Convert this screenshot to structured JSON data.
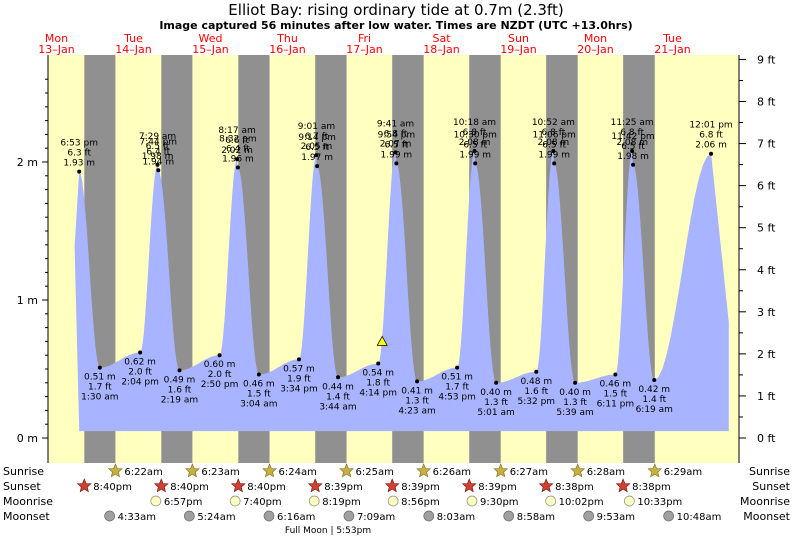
{
  "header": {
    "title": "Elliot Bay: rising  ordinary tide at 0.7m (2.3ft)",
    "subtitle": "Image captured 56 minutes after low water. Times are NZDT (UTC +13.0hrs)"
  },
  "days": [
    {
      "dow": "Mon",
      "date": "13–Jan"
    },
    {
      "dow": "Tue",
      "date": "14–Jan"
    },
    {
      "dow": "Wed",
      "date": "15–Jan"
    },
    {
      "dow": "Thu",
      "date": "16–Jan"
    },
    {
      "dow": "Fri",
      "date": "17–Jan"
    },
    {
      "dow": "Sat",
      "date": "18–Jan"
    },
    {
      "dow": "Sun",
      "date": "19–Jan"
    },
    {
      "dow": "Mon",
      "date": "20–Jan"
    },
    {
      "dow": "Tue",
      "date": "21–Jan"
    }
  ],
  "row_labels": {
    "sunrise": "Sunrise",
    "sunset": "Sunset",
    "moonrise": "Moonrise",
    "moonset": "Moonset"
  },
  "moon_phase": "Full Moon | 5:53pm",
  "colors": {
    "day": "#ffffc0",
    "night": "#909090",
    "tide": "#a8b4ff",
    "title": "#000000",
    "dow": "#ff0000",
    "sunrise_star": "#c8b040",
    "sunset_star": "#d04030",
    "moonrise": "#ffffc0",
    "moonset": "#a0a0a0",
    "marker": "#ffff00"
  },
  "chart_data": {
    "type": "area",
    "title": "Elliot Bay: rising  ordinary tide at 0.7m (2.3ft)",
    "ylabel_left": "m",
    "ylabel_right": "ft",
    "left_ticks": [
      "0 m",
      "1 m",
      "2 m"
    ],
    "right_ticks": [
      "0 ft",
      "1 ft",
      "2 ft",
      "3 ft",
      "4 ft",
      "5 ft",
      "6 ft",
      "7 ft",
      "8 ft",
      "9 ft"
    ],
    "ylim": [
      0,
      2.75
    ],
    "current": {
      "time": "17 Jan 5:10pm",
      "height_m": 0.7
    },
    "high_tides": [
      {
        "t": 0.795,
        "time": "6:53 pm",
        "ft": "6.3 ft",
        "m": "1.93 m",
        "h": 1.93
      },
      {
        "t": 1.812,
        "time": "7:29 am",
        "ft": "6.5 ft",
        "m": "1.98 m",
        "h": 1.98
      },
      {
        "t": 1.822,
        "time": "7:44 pm",
        "ft": "6.4 ft",
        "m": "1.94 m",
        "h": 1.94
      },
      {
        "t": 2.845,
        "time": "8:17 am",
        "ft": "6.6 ft",
        "m": "2.02 m",
        "h": 2.02
      },
      {
        "t": 2.856,
        "time": "8:32 pm",
        "ft": "6.4 ft",
        "m": "1.96 m",
        "h": 1.96
      },
      {
        "t": 3.876,
        "time": "9:01 am",
        "ft": "6.7 ft",
        "m": "2.05 m",
        "h": 2.05
      },
      {
        "t": 3.885,
        "time": "9:14 pm",
        "ft": "6.5 ft",
        "m": "1.97 m",
        "h": 1.97
      },
      {
        "t": 4.903,
        "time": "9:41 am",
        "ft": "6.8 ft",
        "m": "2.07 m",
        "h": 2.07
      },
      {
        "t": 4.914,
        "time": "9:54 pm",
        "ft": "6.5 ft",
        "m": "1.99 m",
        "h": 1.99
      },
      {
        "t": 5.929,
        "time": "10:18 am",
        "ft": "6.8 ft",
        "m": "2.08 m",
        "h": 2.08
      },
      {
        "t": 5.938,
        "time": "10:30 pm",
        "ft": "6.5 ft",
        "m": "1.99 m",
        "h": 1.99
      },
      {
        "t": 6.953,
        "time": "10:52 am",
        "ft": "6.8 ft",
        "m": "2.08 m",
        "h": 2.08
      },
      {
        "t": 6.963,
        "time": "11:06 pm",
        "ft": "6.5 ft",
        "m": "1.99 m",
        "h": 1.99
      },
      {
        "t": 7.976,
        "time": "11:25 am",
        "ft": "6.8 ft",
        "m": "2.08 m",
        "h": 2.08
      },
      {
        "t": 7.988,
        "time": "11:42 pm",
        "ft": "6.5 ft",
        "m": "1.98 m",
        "h": 1.98
      },
      {
        "t": 9.001,
        "time": "12:01 pm",
        "ft": "6.8 ft",
        "m": "2.06 m",
        "h": 2.06
      }
    ],
    "low_tides": [
      {
        "t": 1.063,
        "m": "0.51 m",
        "ft": "1.7 ft",
        "time": "1:30 am",
        "h": 0.51
      },
      {
        "t": 1.586,
        "m": "0.62 m",
        "ft": "2.0 ft",
        "time": "2:04 pm",
        "h": 0.62
      },
      {
        "t": 2.097,
        "m": "0.49 m",
        "ft": "1.6 ft",
        "time": "2:19 am",
        "h": 0.49
      },
      {
        "t": 2.618,
        "m": "0.60 m",
        "ft": "2.0 ft",
        "time": "2:50 pm",
        "h": 0.6
      },
      {
        "t": 3.128,
        "m": "0.46 m",
        "ft": "1.5 ft",
        "time": "3:04 am",
        "h": 0.46
      },
      {
        "t": 3.649,
        "m": "0.57 m",
        "ft": "1.9 ft",
        "time": "3:34 pm",
        "h": 0.57
      },
      {
        "t": 4.156,
        "m": "0.44 m",
        "ft": "1.4 ft",
        "time": "3:44 am",
        "h": 0.44
      },
      {
        "t": 4.678,
        "m": "0.54 m",
        "ft": "1.8 ft",
        "time": "4:14 pm",
        "h": 0.54
      },
      {
        "t": 5.183,
        "m": "0.41 m",
        "ft": "1.3 ft",
        "time": "4:23 am",
        "h": 0.41
      },
      {
        "t": 5.703,
        "m": "0.51 m",
        "ft": "1.7 ft",
        "time": "4:53 pm",
        "h": 0.51
      },
      {
        "t": 6.209,
        "m": "0.40 m",
        "ft": "1.3 ft",
        "time": "5:01 am",
        "h": 0.4
      },
      {
        "t": 6.731,
        "m": "0.48 m",
        "ft": "1.6 ft",
        "time": "5:32 pm",
        "h": 0.48
      },
      {
        "t": 7.235,
        "m": "0.40 m",
        "ft": "1.3 ft",
        "time": "5:39 am",
        "h": 0.4
      },
      {
        "t": 7.758,
        "m": "0.46 m",
        "ft": "1.5 ft",
        "time": "6:11 pm",
        "h": 0.46
      },
      {
        "t": 8.263,
        "m": "0.42 m",
        "ft": "1.4 ft",
        "time": "6:19 am",
        "h": 0.42
      }
    ],
    "sunrise": [
      {
        "t": 1.265,
        "label": "6:22am"
      },
      {
        "t": 2.265,
        "label": "6:23am"
      },
      {
        "t": 3.267,
        "label": "6:24am"
      },
      {
        "t": 4.267,
        "label": "6:25am"
      },
      {
        "t": 5.268,
        "label": "6:26am"
      },
      {
        "t": 6.269,
        "label": "6:27am"
      },
      {
        "t": 7.269,
        "label": "6:28am"
      },
      {
        "t": 8.27,
        "label": "6:29am"
      }
    ],
    "sunset": [
      {
        "t": 0.861,
        "label": "8:40pm"
      },
      {
        "t": 1.861,
        "label": "8:40pm"
      },
      {
        "t": 2.861,
        "label": "8:40pm"
      },
      {
        "t": 3.86,
        "label": "8:39pm"
      },
      {
        "t": 4.86,
        "label": "8:39pm"
      },
      {
        "t": 5.86,
        "label": "8:39pm"
      },
      {
        "t": 6.859,
        "label": "8:38pm"
      },
      {
        "t": 7.859,
        "label": "8:38pm"
      }
    ],
    "moonrise": [
      {
        "t": 1.79,
        "label": "6:57pm"
      },
      {
        "t": 2.82,
        "label": "7:40pm"
      },
      {
        "t": 3.847,
        "label": "8:19pm"
      },
      {
        "t": 4.872,
        "label": "8:56pm"
      },
      {
        "t": 5.896,
        "label": "9:30pm"
      },
      {
        "t": 6.918,
        "label": "10:02pm"
      },
      {
        "t": 7.94,
        "label": "10:33pm"
      }
    ],
    "moonset": [
      {
        "t": 1.19,
        "label": "4:33am"
      },
      {
        "t": 2.225,
        "label": "5:24am"
      },
      {
        "t": 3.26,
        "label": "6:16am"
      },
      {
        "t": 4.298,
        "label": "7:09am"
      },
      {
        "t": 5.335,
        "label": "8:03am"
      },
      {
        "t": 6.373,
        "label": "8:58am"
      },
      {
        "t": 7.411,
        "label": "9:53am"
      },
      {
        "t": 8.45,
        "label": "10:48am"
      }
    ]
  }
}
